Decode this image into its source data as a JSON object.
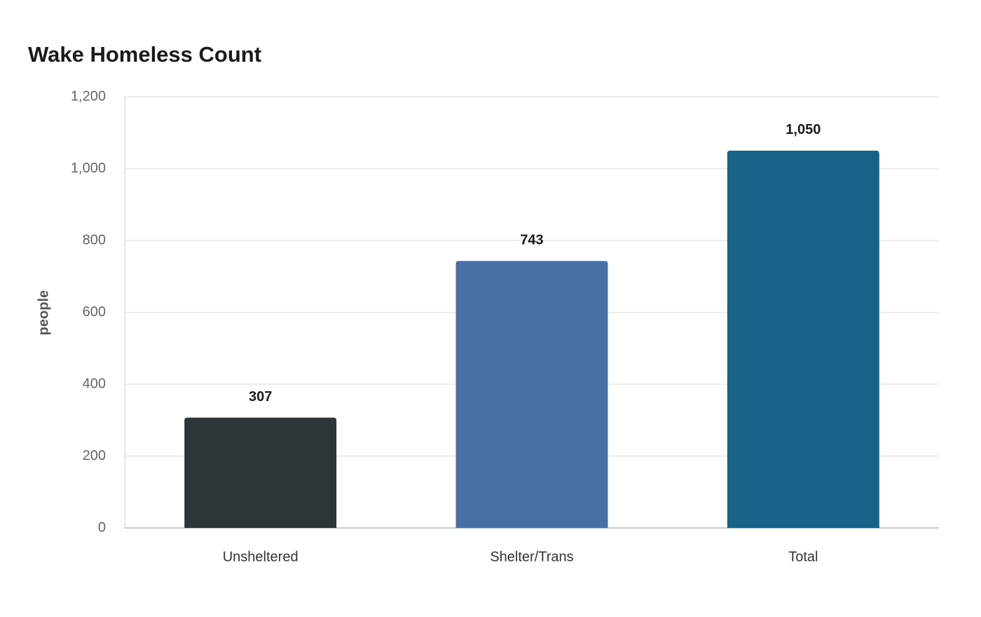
{
  "chart_data": {
    "type": "bar",
    "title": "Wake Homeless Count",
    "y_label": "people",
    "categories": [
      "Unsheltered",
      "Shelter/Trans",
      "Total"
    ],
    "values": [
      307,
      743,
      1050
    ],
    "value_labels": [
      "307",
      "743",
      "1,050"
    ],
    "colors": [
      "#2e3538",
      "#4a6fa5",
      "#176388"
    ],
    "ylim": [
      0,
      1200
    ],
    "yticks": [
      0,
      200,
      400,
      600,
      800,
      {
        "value": 1000,
        "label": "1,000"
      },
      {
        "value": 1200,
        "label": "1,200"
      }
    ],
    "grid": true
  }
}
